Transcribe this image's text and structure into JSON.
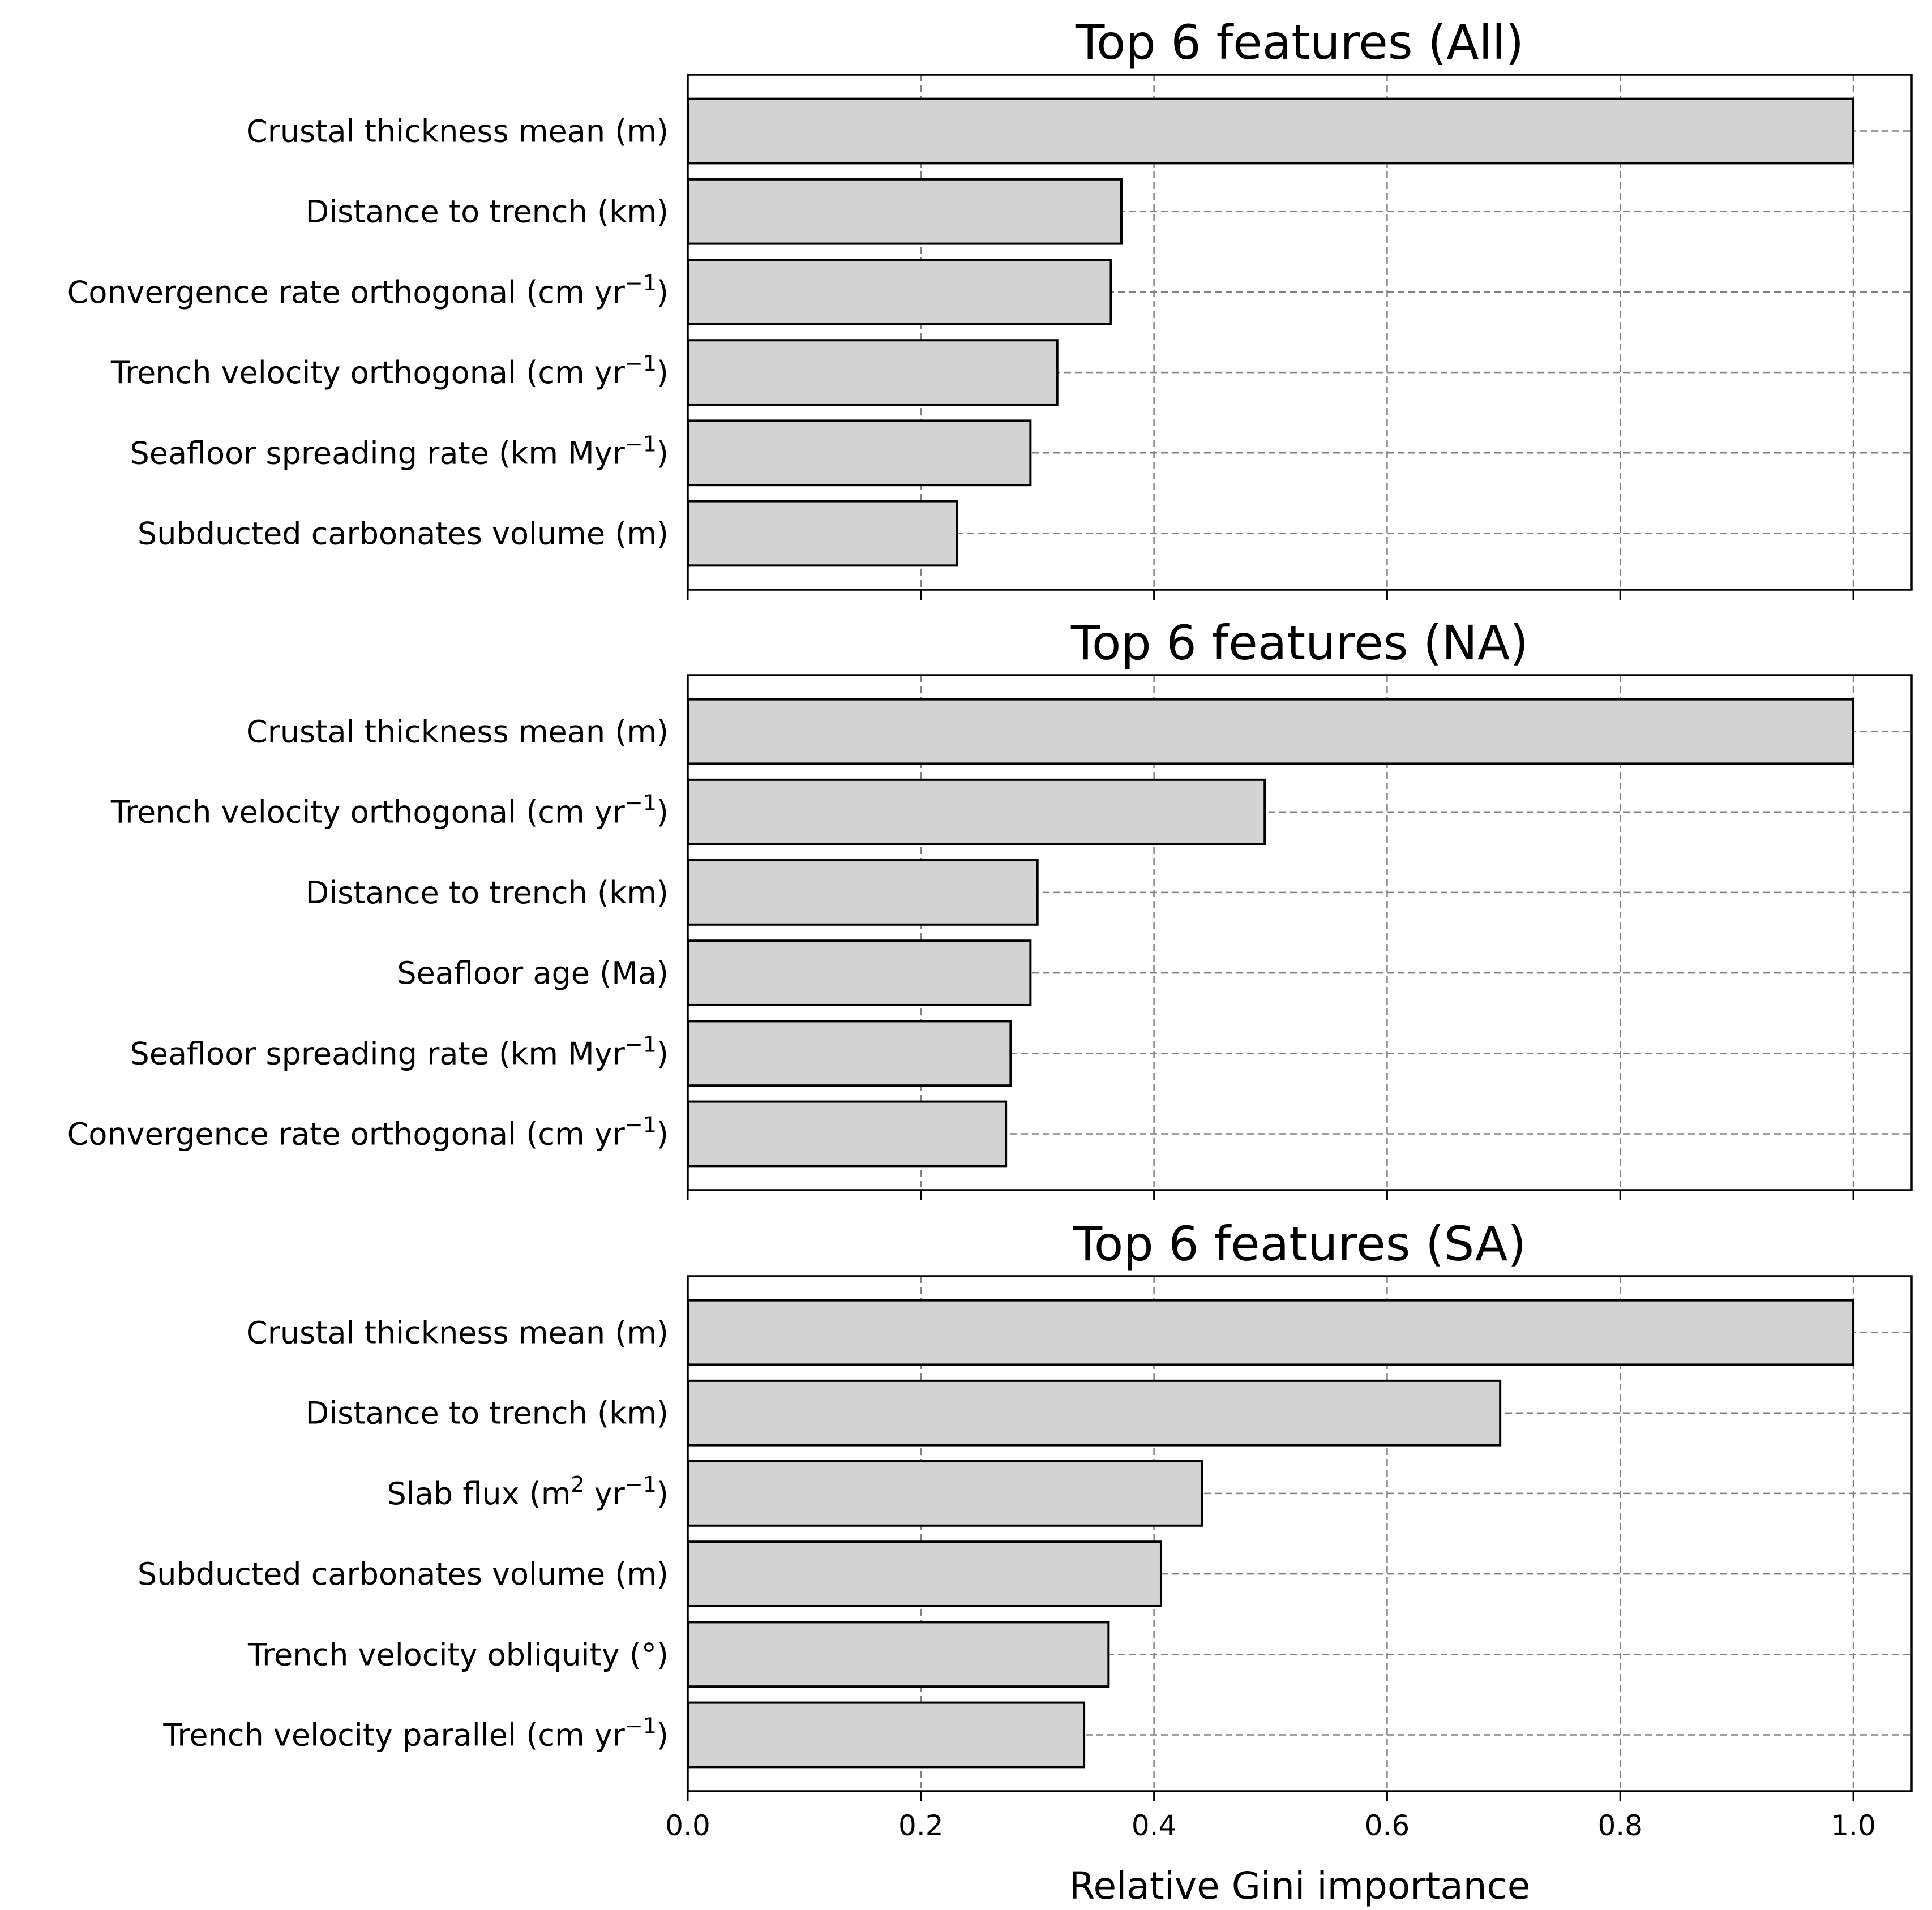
{
  "chart_data": [
    {
      "type": "bar",
      "orientation": "horizontal",
      "title": "Top 6 features (All)",
      "categories": [
        "Crustal thickness mean (m)",
        "Distance to trench (km)",
        "Convergence rate orthogonal (cm yr$^{-1}$)",
        "Trench velocity orthogonal (cm yr$^{-1}$)",
        "Seafloor spreading rate (km Myr$^{-1}$)",
        "Subducted carbonates volume (m)"
      ],
      "values": [
        1.0,
        0.372,
        0.363,
        0.317,
        0.294,
        0.231
      ],
      "xlim": [
        0,
        1.05
      ],
      "xticks": [
        "0.0",
        "0.2",
        "0.4",
        "0.6",
        "0.8",
        "1.0"
      ],
      "show_xtick_labels": false,
      "xlabel": "",
      "grid": true,
      "bar_color": "#d3d3d3",
      "edge_color": "#000000"
    },
    {
      "type": "bar",
      "orientation": "horizontal",
      "title": "Top 6 features (NA)",
      "categories": [
        "Crustal thickness mean (m)",
        "Trench velocity orthogonal (cm yr$^{-1}$)",
        "Distance to trench (km)",
        "Seafloor age (Ma)",
        "Seafloor spreading rate (km Myr$^{-1}$)",
        "Convergence rate orthogonal (cm yr$^{-1}$)"
      ],
      "values": [
        1.0,
        0.495,
        0.3,
        0.294,
        0.277,
        0.273
      ],
      "xlim": [
        0,
        1.05
      ],
      "xticks": [
        "0.0",
        "0.2",
        "0.4",
        "0.6",
        "0.8",
        "1.0"
      ],
      "show_xtick_labels": false,
      "xlabel": "",
      "grid": true,
      "bar_color": "#d3d3d3",
      "edge_color": "#000000"
    },
    {
      "type": "bar",
      "orientation": "horizontal",
      "title": "Top 6 features (SA)",
      "categories": [
        "Crustal thickness mean (m)",
        "Distance to trench (km)",
        "Slab flux (m$^{2}$ yr$^{-1}$)",
        "Subducted carbonates volume (m)",
        "Trench velocity obliquity (°)",
        "Trench velocity parallel (cm yr$^{-1}$)"
      ],
      "values": [
        1.0,
        0.697,
        0.441,
        0.406,
        0.361,
        0.34
      ],
      "xlim": [
        0,
        1.05
      ],
      "xticks": [
        "0.0",
        "0.2",
        "0.4",
        "0.6",
        "0.8",
        "1.0"
      ],
      "show_xtick_labels": true,
      "xlabel": "Relative Gini importance",
      "grid": true,
      "bar_color": "#d3d3d3",
      "edge_color": "#000000"
    }
  ]
}
